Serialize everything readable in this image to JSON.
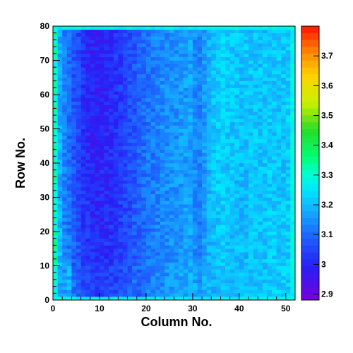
{
  "chart_data": {
    "type": "heatmap",
    "title": "",
    "xlabel": "Column No.",
    "ylabel": "Row No.",
    "x_bins": [
      0,
      52
    ],
    "y_bins": [
      0,
      80
    ],
    "xlim": [
      0,
      52
    ],
    "ylim": [
      0,
      80
    ],
    "x_ticks": [
      0,
      10,
      20,
      30,
      40,
      50
    ],
    "y_ticks": [
      0,
      10,
      20,
      30,
      40,
      50,
      60,
      70,
      80
    ],
    "zlim": [
      2.88,
      3.8
    ],
    "z_ticks": [
      2.9,
      3,
      3.1,
      3.2,
      3.3,
      3.4,
      3.5,
      3.6,
      3.7
    ],
    "colormap": "rainbow (violet-blue-cyan-green-yellow-orange-red)",
    "grid": false,
    "legend": "color bar at right",
    "values": [
      [
        3.28,
        3.18,
        3.16,
        3.18,
        3.11,
        3.09,
        3.06,
        3.05,
        3.04,
        3.03,
        3.03,
        3.03,
        3.05,
        3.05,
        3.06,
        3.07,
        3.08,
        3.1,
        3.09,
        3.11,
        3.12,
        3.13,
        3.14,
        3.14,
        3.15,
        3.16,
        3.16,
        3.17,
        3.17,
        3.18,
        3.17,
        3.16,
        3.18,
        3.19,
        3.19,
        3.2,
        3.2,
        3.2,
        3.2,
        3.2,
        3.2,
        3.2,
        3.21,
        3.21,
        3.21,
        3.21,
        3.21,
        3.22,
        3.22,
        3.22,
        3.22,
        3.25
      ],
      [
        3.32,
        3.2,
        3.14,
        3.12,
        3.09,
        3.07,
        3.04,
        3.03,
        3.02,
        3.01,
        3.01,
        3.02,
        3.02,
        3.03,
        3.04,
        3.05,
        3.07,
        3.08,
        3.09,
        3.1,
        3.11,
        3.12,
        3.13,
        3.14,
        3.14,
        3.15,
        3.15,
        3.16,
        3.16,
        3.17,
        3.15,
        3.14,
        3.17,
        3.19,
        3.2,
        3.2,
        3.21,
        3.2,
        3.2,
        3.2,
        3.2,
        3.2,
        3.21,
        3.21,
        3.21,
        3.21,
        3.22,
        3.22,
        3.21,
        3.21,
        3.22,
        3.28
      ],
      [
        3.3,
        3.19,
        3.13,
        3.11,
        3.08,
        3.06,
        3.03,
        3.02,
        3.0,
        3.0,
        3.0,
        3.01,
        3.02,
        3.02,
        3.04,
        3.05,
        3.06,
        3.08,
        3.09,
        3.1,
        3.11,
        3.12,
        3.13,
        3.14,
        3.14,
        3.15,
        3.15,
        3.16,
        3.16,
        3.17,
        3.14,
        3.13,
        3.16,
        3.19,
        3.2,
        3.21,
        3.22,
        3.21,
        3.21,
        3.2,
        3.2,
        3.2,
        3.21,
        3.21,
        3.21,
        3.21,
        3.22,
        3.21,
        3.21,
        3.21,
        3.22,
        3.27
      ],
      [
        3.31,
        3.18,
        3.13,
        3.11,
        3.08,
        3.05,
        3.02,
        3.01,
        3.0,
        2.99,
        3.0,
        3.0,
        3.01,
        3.02,
        3.04,
        3.05,
        3.06,
        3.07,
        3.09,
        3.1,
        3.11,
        3.12,
        3.13,
        3.14,
        3.14,
        3.15,
        3.15,
        3.16,
        3.16,
        3.17,
        3.14,
        3.13,
        3.16,
        3.19,
        3.21,
        3.22,
        3.22,
        3.21,
        3.21,
        3.2,
        3.2,
        3.2,
        3.21,
        3.21,
        3.21,
        3.21,
        3.22,
        3.21,
        3.21,
        3.21,
        3.22,
        3.27
      ],
      [
        3.3,
        3.18,
        3.13,
        3.1,
        3.07,
        3.05,
        3.02,
        3.0,
        2.99,
        2.99,
        2.99,
        3.0,
        3.01,
        3.02,
        3.03,
        3.05,
        3.06,
        3.07,
        3.09,
        3.1,
        3.11,
        3.12,
        3.13,
        3.14,
        3.14,
        3.15,
        3.15,
        3.16,
        3.16,
        3.17,
        3.14,
        3.13,
        3.16,
        3.19,
        3.21,
        3.22,
        3.22,
        3.21,
        3.21,
        3.21,
        3.2,
        3.21,
        3.21,
        3.21,
        3.21,
        3.21,
        3.22,
        3.21,
        3.21,
        3.21,
        3.22,
        3.27
      ],
      [
        3.31,
        3.18,
        3.13,
        3.1,
        3.07,
        3.05,
        3.02,
        3.0,
        2.99,
        2.99,
        2.99,
        3.0,
        3.01,
        3.02,
        3.03,
        3.05,
        3.06,
        3.07,
        3.09,
        3.1,
        3.11,
        3.12,
        3.13,
        3.14,
        3.14,
        3.15,
        3.15,
        3.16,
        3.16,
        3.17,
        3.14,
        3.13,
        3.16,
        3.19,
        3.21,
        3.22,
        3.23,
        3.22,
        3.21,
        3.21,
        3.2,
        3.21,
        3.21,
        3.21,
        3.21,
        3.21,
        3.22,
        3.21,
        3.21,
        3.21,
        3.22,
        3.27
      ],
      [
        3.3,
        3.18,
        3.13,
        3.1,
        3.07,
        3.05,
        3.02,
        3.0,
        2.99,
        2.99,
        2.99,
        3.0,
        3.01,
        3.02,
        3.03,
        3.05,
        3.06,
        3.07,
        3.09,
        3.1,
        3.11,
        3.12,
        3.13,
        3.14,
        3.14,
        3.15,
        3.15,
        3.16,
        3.16,
        3.17,
        3.14,
        3.13,
        3.16,
        3.19,
        3.21,
        3.22,
        3.23,
        3.22,
        3.21,
        3.21,
        3.2,
        3.21,
        3.21,
        3.21,
        3.21,
        3.21,
        3.22,
        3.21,
        3.21,
        3.21,
        3.22,
        3.27
      ],
      [
        3.31,
        3.18,
        3.13,
        3.1,
        3.07,
        3.05,
        3.02,
        3.0,
        2.99,
        2.99,
        2.99,
        3.0,
        3.01,
        3.02,
        3.03,
        3.05,
        3.06,
        3.07,
        3.09,
        3.1,
        3.11,
        3.12,
        3.13,
        3.14,
        3.14,
        3.15,
        3.15,
        3.16,
        3.16,
        3.17,
        3.14,
        3.13,
        3.16,
        3.19,
        3.21,
        3.22,
        3.23,
        3.22,
        3.21,
        3.21,
        3.2,
        3.21,
        3.21,
        3.21,
        3.21,
        3.21,
        3.22,
        3.21,
        3.21,
        3.21,
        3.22,
        3.27
      ]
    ],
    "values_note": "8 row-bands (rows 0-9, 10-19, ..., 70-79) x 52 columns, approximate mean value per band"
  },
  "colors": {
    "frame": "#000000",
    "background": "#ffffff"
  }
}
